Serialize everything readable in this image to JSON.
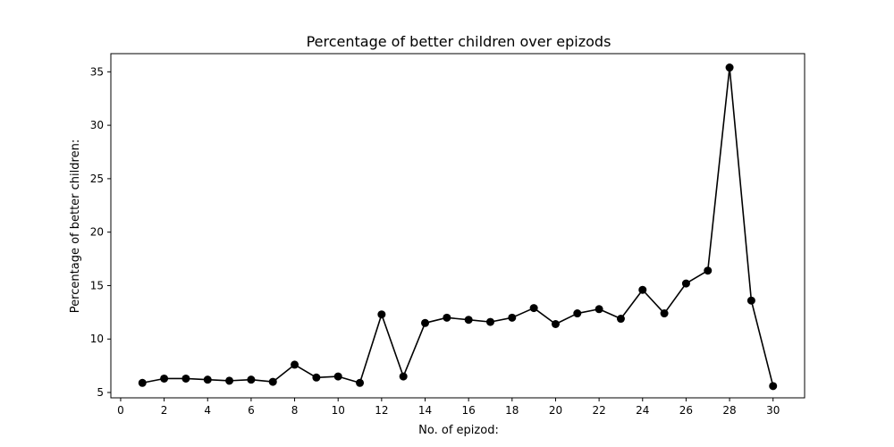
{
  "chart_data": {
    "type": "line",
    "title": "Percentage of better children over epizods",
    "xlabel": "No. of epizod:",
    "ylabel": "Percentage of better children:",
    "xlim": [
      -0.45,
      31.45
    ],
    "ylim": [
      4.5,
      36.7
    ],
    "xticks": [
      0,
      2,
      4,
      6,
      8,
      10,
      12,
      14,
      16,
      18,
      20,
      22,
      24,
      26,
      28,
      30
    ],
    "yticks": [
      5,
      10,
      15,
      20,
      25,
      30,
      35
    ],
    "grid": false,
    "legend": "none",
    "marker": "circle",
    "color": "#000000",
    "series": [
      {
        "x": [
          1,
          2,
          3,
          4,
          5,
          6,
          7,
          8,
          9,
          10,
          11,
          12,
          13,
          14,
          15,
          16,
          17,
          18,
          19,
          20,
          21,
          22,
          23,
          24,
          25,
          26,
          27,
          28,
          29,
          30
        ],
        "y": [
          5.9,
          6.3,
          6.3,
          6.2,
          6.1,
          6.2,
          6.0,
          7.6,
          6.4,
          6.5,
          5.9,
          12.3,
          6.5,
          11.5,
          12.0,
          11.8,
          11.6,
          12.0,
          12.9,
          11.4,
          12.4,
          12.8,
          11.9,
          14.6,
          12.4,
          15.2,
          16.4,
          35.4,
          13.6,
          5.6
        ]
      }
    ]
  }
}
